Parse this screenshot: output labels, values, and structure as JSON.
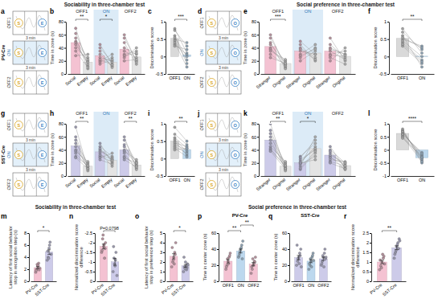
{
  "headings": [
    "Sociability in three-chamber test",
    "Social preference in three-chamber test"
  ],
  "schematics": [
    {
      "panel": "a",
      "line": "PV-Cre",
      "phases": [
        "OFF1",
        "ON",
        "OFF2"
      ],
      "duration": "3 min",
      "left": "S",
      "right": "E"
    },
    {
      "panel": "d",
      "phases": [
        "OFF1",
        "ON",
        "OFF2"
      ],
      "duration": "3 min",
      "left": "S",
      "right": "O"
    },
    {
      "panel": "g",
      "line": "SST-Cre",
      "phases": [
        "OFF1",
        "ON",
        "OFF2"
      ],
      "duration": "3 min",
      "left": "S",
      "right": "E"
    },
    {
      "panel": "j",
      "phases": [
        "OFF1",
        "ON",
        "OFF2"
      ],
      "duration": "3 min",
      "left": "S",
      "right": "O"
    }
  ],
  "chart_data": [
    {
      "type": "paired",
      "panel": "b",
      "ylabel": "Time in zone (s)",
      "groups": [
        "OFF1",
        "ON",
        "OFF2"
      ],
      "categories": [
        "Social",
        "Empty",
        "Social",
        "Empty",
        "Social",
        "Empty"
      ],
      "values": [
        48,
        18,
        28,
        18,
        38,
        26
      ],
      "points": [
        [
          70,
          62,
          55,
          50,
          48,
          45,
          40,
          35,
          28
        ],
        [
          12,
          20,
          8,
          25,
          15,
          18,
          22,
          10,
          30
        ],
        [
          45,
          20,
          30,
          25,
          35,
          18,
          40,
          22,
          15
        ],
        [
          15,
          30,
          12,
          20,
          10,
          25,
          18,
          14,
          22
        ],
        [
          55,
          40,
          30,
          48,
          25,
          35,
          60,
          28,
          20
        ],
        [
          20,
          30,
          35,
          15,
          40,
          25,
          18,
          32,
          22
        ]
      ],
      "colors": [
        "#f4c2d2",
        "#e4e4e4",
        "#f4c2d2",
        "#e4e4e4",
        "#f4c2d2",
        "#e4e4e4"
      ],
      "ylim": [
        0,
        80
      ],
      "yticks": [
        0,
        20,
        40,
        60,
        80
      ],
      "annotations": [
        {
          "text": "**",
          "from": 0,
          "to": 1
        },
        {
          "text": "*",
          "from": 2,
          "to": 3
        }
      ]
    },
    {
      "type": "paired",
      "panel": "c",
      "ylabel": "Discrimination score",
      "categories": [
        "OFF1",
        "ON"
      ],
      "values": [
        0.52,
        0.05
      ],
      "points": [
        [
          0.8,
          0.6,
          0.75,
          0.35,
          0.5,
          0.45,
          0.3,
          0.55,
          0.4
        ],
        [
          0.1,
          -0.2,
          0.3,
          0.05,
          0.4,
          -0.1,
          0.2,
          0.0,
          -0.3
        ]
      ],
      "colors": [
        "#d9d9d9",
        "#bcd8ee"
      ],
      "ylim": [
        -0.5,
        1
      ],
      "yticks": [
        -0.5,
        0,
        0.5,
        1
      ],
      "annotations": [
        {
          "text": "***",
          "from": 0,
          "to": 1
        }
      ]
    },
    {
      "type": "paired",
      "panel": "e",
      "ylabel": "Time in zone (s)",
      "groups": [
        "OFF1",
        "ON",
        "OFF2"
      ],
      "categories": [
        "Stranger",
        "Original",
        "Stranger",
        "Original",
        "Stranger",
        "Original"
      ],
      "values": [
        42,
        16,
        35,
        32,
        35,
        27
      ],
      "points": [
        [
          60,
          55,
          48,
          45,
          40,
          38,
          35,
          30,
          25
        ],
        [
          10,
          15,
          8,
          20,
          12,
          18,
          22,
          14,
          16
        ],
        [
          50,
          30,
          45,
          25,
          40,
          20,
          35,
          38,
          28
        ],
        [
          30,
          45,
          20,
          40,
          25,
          35,
          30,
          22,
          38
        ],
        [
          55,
          30,
          40,
          25,
          45,
          20,
          35,
          38,
          28
        ],
        [
          20,
          35,
          30,
          15,
          25,
          40,
          22,
          30,
          28
        ]
      ],
      "colors": [
        "#f4c2d2",
        "#e4e4e4",
        "#f4c2d2",
        "#e4e4e4",
        "#f4c2d2",
        "#e4e4e4"
      ],
      "ylim": [
        0,
        80
      ],
      "yticks": [
        0,
        20,
        40,
        60,
        80
      ],
      "annotations": [
        {
          "text": "***",
          "from": 0,
          "to": 1
        }
      ]
    },
    {
      "type": "paired",
      "panel": "f",
      "ylabel": "Discrimination score",
      "categories": [
        "OFF1",
        "ON"
      ],
      "values": [
        0.52,
        0.01
      ],
      "points": [
        [
          0.7,
          0.6,
          0.8,
          0.4,
          0.5,
          0.3,
          0.45,
          0.55,
          0.35
        ],
        [
          0.2,
          -0.3,
          0.1,
          -0.1,
          0.3,
          -0.2,
          0.0,
          0.25,
          -0.15
        ]
      ],
      "colors": [
        "#d9d9d9",
        "#bcd8ee"
      ],
      "ylim": [
        -0.5,
        1
      ],
      "yticks": [
        -0.5,
        0,
        0.5,
        1
      ],
      "annotations": [
        {
          "text": "**",
          "from": 0,
          "to": 1
        }
      ]
    },
    {
      "type": "paired",
      "panel": "h",
      "ylabel": "Time in zone (s)",
      "groups": [
        "OFF1",
        "ON",
        "OFF2"
      ],
      "categories": [
        "Social",
        "Empty",
        "Social",
        "Empty",
        "Social",
        "Empty"
      ],
      "values": [
        46,
        15,
        37,
        24,
        40,
        17
      ],
      "points": [
        [
          75,
          60,
          55,
          50,
          45,
          40,
          38,
          35,
          30,
          28
        ],
        [
          10,
          15,
          8,
          20,
          12,
          18,
          22,
          14,
          16,
          11
        ],
        [
          50,
          45,
          40,
          38,
          35,
          30,
          28,
          25,
          32,
          42
        ],
        [
          20,
          30,
          25,
          28,
          15,
          22,
          35,
          18,
          26,
          24
        ],
        [
          60,
          55,
          48,
          45,
          40,
          38,
          35,
          30,
          28,
          25
        ],
        [
          12,
          20,
          15,
          22,
          18,
          25,
          10,
          16,
          20,
          14
        ]
      ],
      "colors": [
        "#cdcbe9",
        "#e4e4e4",
        "#cdcbe9",
        "#e4e4e4",
        "#cdcbe9",
        "#e4e4e4"
      ],
      "ylim": [
        0,
        80
      ],
      "yticks": [
        0,
        20,
        40,
        60,
        80
      ],
      "annotations": [
        {
          "text": "**",
          "from": 0,
          "to": 1
        },
        {
          "text": "**",
          "from": 4,
          "to": 5
        }
      ]
    },
    {
      "type": "paired",
      "panel": "i",
      "ylabel": "Discrimination score",
      "categories": [
        "OFF1",
        "ON"
      ],
      "values": [
        0.5,
        0.26
      ],
      "points": [
        [
          0.9,
          0.7,
          0.6,
          0.55,
          0.5,
          0.45,
          0.4,
          0.35,
          0.3,
          0.25
        ],
        [
          0.5,
          0.4,
          0.3,
          0.2,
          0.1,
          0.35,
          0.25,
          0.15,
          0.05,
          0.3
        ]
      ],
      "colors": [
        "#d9d9d9",
        "#bcd8ee"
      ],
      "ylim": [
        -0.5,
        1
      ],
      "yticks": [
        -0.5,
        0,
        0.5,
        1
      ],
      "annotations": [
        {
          "text": "**",
          "from": 0,
          "to": 1
        }
      ]
    },
    {
      "type": "paired",
      "panel": "k",
      "ylabel": "Time in zone (s)",
      "groups": [
        "OFF1",
        "ON",
        "OFF2"
      ],
      "categories": [
        "Stranger",
        "Original",
        "Stranger",
        "Original",
        "Stranger",
        "Original"
      ],
      "values": [
        55,
        15,
        20,
        42,
        32,
        16
      ],
      "points": [
        [
          80,
          70,
          65,
          60,
          55,
          50,
          45,
          42,
          40,
          38
        ],
        [
          10,
          15,
          8,
          20,
          12,
          18,
          22,
          14,
          16,
          11
        ],
        [
          15,
          20,
          25,
          10,
          30,
          18,
          22,
          12,
          28,
          20
        ],
        [
          60,
          45,
          40,
          35,
          50,
          30,
          42,
          38,
          55,
          25
        ],
        [
          45,
          40,
          35,
          30,
          28,
          25,
          38,
          22,
          32,
          20
        ],
        [
          12,
          20,
          15,
          10,
          18,
          22,
          14,
          16,
          20,
          11
        ]
      ],
      "colors": [
        "#cdcbe9",
        "#e4e4e4",
        "#cdcbe9",
        "#e4e4e4",
        "#cdcbe9",
        "#e4e4e4"
      ],
      "ylim": [
        0,
        80
      ],
      "yticks": [
        0,
        20,
        40,
        60,
        80
      ],
      "annotations": [
        {
          "text": "**",
          "from": 0,
          "to": 1
        },
        {
          "text": "*",
          "from": 2,
          "to": 3
        }
      ]
    },
    {
      "type": "paired",
      "panel": "l",
      "ylabel": "Discrimination score",
      "categories": [
        "OFF1",
        "ON"
      ],
      "values": [
        0.63,
        -0.3
      ],
      "points": [
        [
          0.8,
          0.75,
          0.7,
          0.65,
          0.6,
          0.55,
          0.5,
          0.45,
          0.6,
          0.7
        ],
        [
          -0.5,
          -0.4,
          -0.3,
          -0.2,
          -0.1,
          -0.35,
          -0.45,
          -0.25,
          -0.15,
          -0.3
        ]
      ],
      "colors": [
        "#d9d9d9",
        "#bcd8ee"
      ],
      "ylim": [
        -1,
        1
      ],
      "yticks": [
        -1,
        -0.5,
        0,
        0.5,
        1
      ],
      "annotations": [
        {
          "text": "****",
          "from": 0,
          "to": 1
        }
      ]
    },
    {
      "type": "bar",
      "panel": "m",
      "ylabel": "Latency of first social behavior stop in recognition step (s)",
      "categories": [
        "PV-Cre",
        "SST-Cre"
      ],
      "values": [
        2.26,
        4.85
      ],
      "errors": [
        0.17,
        0.38
      ],
      "points": [
        [
          1.5,
          2.0,
          2.5,
          3.0,
          2.2,
          1.8,
          2.8,
          2.6,
          1.9
        ],
        [
          3.5,
          4.0,
          5.5,
          6.5,
          4.5,
          5.0,
          3.8,
          6.0
        ]
      ],
      "colors": [
        "#f4c2d2",
        "#cdcbe9"
      ],
      "ylim": [
        0,
        8
      ],
      "yticks": [
        0,
        2,
        4,
        6,
        8
      ],
      "annotations": [
        {
          "text": "*",
          "from": 0,
          "to": 1
        }
      ]
    },
    {
      "type": "bar",
      "panel": "n",
      "ylabel": "Normalized discrimination score difference",
      "categories": [
        "PV-Cre",
        "SST-Cre"
      ],
      "values": [
        -1.81,
        -1.01
      ],
      "errors": [
        0.12,
        0.18
      ],
      "points": [
        [
          -1.5,
          -2.2,
          -1.8,
          -1.2,
          -2.0,
          -1.6,
          -2.4,
          -1.9,
          -1.7
        ],
        [
          -0.5,
          -1.2,
          -0.8,
          -1.5,
          -0.3,
          -1.8,
          -0.9,
          -1.1
        ]
      ],
      "colors": [
        "#f4c2d2",
        "#cdcbe9"
      ],
      "ylim": [
        0,
        -2.5
      ],
      "yticks": [
        0,
        -0.5,
        -1,
        -1.5,
        -2,
        -2.5
      ],
      "annotations": [
        {
          "text": "P=0.0798",
          "from": 0,
          "to": 1
        }
      ]
    },
    {
      "type": "bar",
      "panel": "o",
      "ylabel": "Latency of first social behavior stop in preference step (s)",
      "categories": [
        "PV-Cre",
        "SST-Cre"
      ],
      "values": [
        2.59,
        1.6
      ],
      "errors": [
        0.27,
        0.14
      ],
      "points": [
        [
          1.5,
          2.0,
          2.5,
          3.0,
          4.0,
          3.5,
          2.2,
          1.8,
          2.8
        ],
        [
          1.0,
          1.5,
          2.0,
          1.2,
          1.8,
          2.5,
          1.3,
          1.6,
          1.4,
          1.7
        ]
      ],
      "colors": [
        "#f4c2d2",
        "#cdcbe9"
      ],
      "ylim": [
        0,
        5
      ],
      "yticks": [
        0,
        1,
        2,
        3,
        4,
        5
      ],
      "annotations": [
        {
          "text": "*",
          "from": 0,
          "to": 1
        }
      ]
    },
    {
      "type": "bar",
      "panel": "p",
      "title": "PV-Cre",
      "ylabel": "Time in center zone (s)",
      "categories": [
        "OFF1",
        "ON",
        "OFF2"
      ],
      "values": [
        25,
        37.8,
        21.3
      ],
      "errors": [
        2.2,
        2.4,
        2.1
      ],
      "points": [
        [
          15,
          20,
          25,
          30,
          35,
          18,
          28,
          22,
          32
        ],
        [
          30,
          35,
          40,
          45,
          50,
          32,
          38,
          42,
          28
        ],
        [
          10,
          15,
          20,
          25,
          30,
          18,
          28,
          22,
          24
        ]
      ],
      "colors": [
        "#f4c2d2",
        "#bcd8ee",
        "#f4c2d2"
      ],
      "ylim": [
        0,
        60
      ],
      "yticks": [
        0,
        20,
        40,
        60
      ],
      "annotations": [
        {
          "text": "**",
          "from": 0,
          "to": 1
        },
        {
          "text": "**",
          "from": 1,
          "to": 2
        }
      ]
    },
    {
      "type": "bar",
      "panel": "q",
      "title": "SST-Cre",
      "ylabel": "Time in center zone (s)",
      "categories": [
        "OFF1",
        "ON",
        "OFF2"
      ],
      "values": [
        29.5,
        25.1,
        28
      ],
      "errors": [
        2.7,
        2.0,
        2.1
      ],
      "points": [
        [
          20,
          25,
          30,
          35,
          40,
          45,
          28,
          22,
          32,
          18
        ],
        [
          15,
          20,
          25,
          30,
          35,
          22,
          28,
          18,
          32,
          26
        ],
        [
          20,
          25,
          30,
          35,
          28,
          22,
          32,
          18,
          40,
          30
        ]
      ],
      "colors": [
        "#cdcbe9",
        "#bcd8ee",
        "#cdcbe9"
      ],
      "ylim": [
        0,
        60
      ],
      "yticks": [
        0,
        20,
        40,
        60
      ]
    },
    {
      "type": "bar",
      "panel": "r",
      "ylabel": "Normalized discrimination score difference",
      "categories": [
        "PV-Cre",
        "SST-Cre"
      ],
      "values": [
        1.0,
        1.74
      ],
      "errors": [
        0.09,
        0.1
      ],
      "points": [
        [
          0.6,
          0.8,
          1.0,
          1.2,
          0.9,
          1.1,
          0.7,
          1.4,
          1.3
        ],
        [
          1.2,
          1.5,
          1.8,
          2.0,
          2.2,
          1.4,
          1.6,
          1.9,
          1.7,
          2.1
        ]
      ],
      "colors": [
        "#f4c2d2",
        "#cdcbe9"
      ],
      "ylim": [
        0,
        2.5
      ],
      "yticks": [
        0,
        0.5,
        1,
        1.5,
        2,
        2.5
      ],
      "annotations": [
        {
          "text": "**",
          "from": 0,
          "to": 1
        }
      ]
    }
  ]
}
